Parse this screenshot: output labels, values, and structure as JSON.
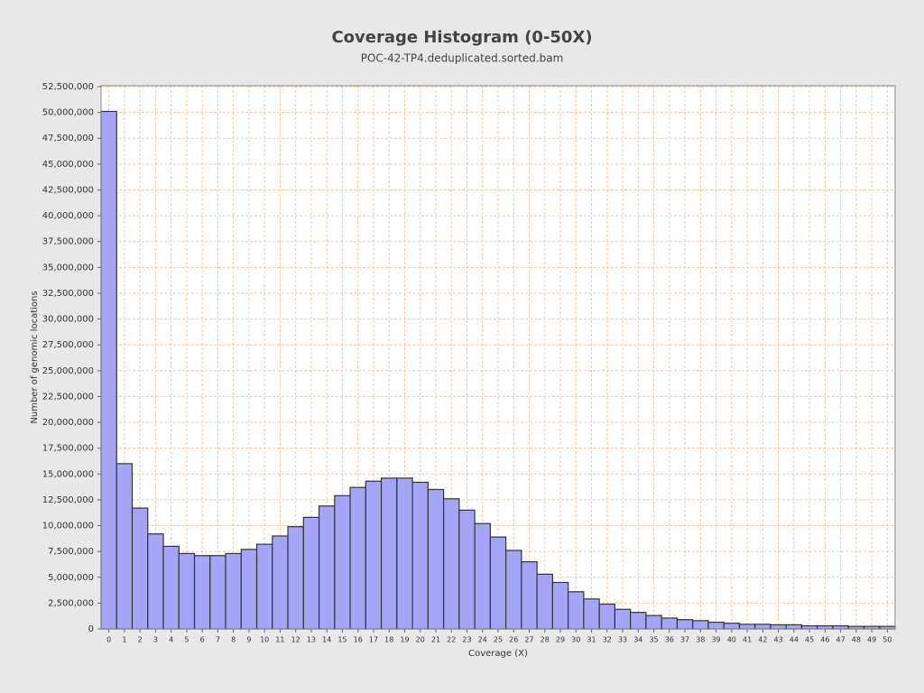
{
  "chart_data": {
    "type": "bar",
    "title": "Coverage Histogram (0-50X)",
    "subtitle": "POC-42-TP4.deduplicated.sorted.bam",
    "x_label": "Coverage (X)",
    "y_label": "Number of genomic locations",
    "categories": [
      "0",
      "1",
      "2",
      "3",
      "4",
      "5",
      "6",
      "7",
      "8",
      "9",
      "10",
      "11",
      "12",
      "13",
      "14",
      "15",
      "16",
      "17",
      "18",
      "19",
      "20",
      "21",
      "22",
      "23",
      "24",
      "25",
      "26",
      "27",
      "28",
      "29",
      "30",
      "31",
      "32",
      "33",
      "34",
      "35",
      "36",
      "37",
      "38",
      "39",
      "40",
      "41",
      "42",
      "43",
      "44",
      "45",
      "46",
      "47",
      "48",
      "49",
      "50"
    ],
    "values": [
      50100000,
      16000000,
      11700000,
      9200000,
      8000000,
      7300000,
      7100000,
      7100000,
      7300000,
      7700000,
      8200000,
      9000000,
      9900000,
      10800000,
      11900000,
      12900000,
      13700000,
      14300000,
      14600000,
      14600000,
      14200000,
      13500000,
      12600000,
      11500000,
      10200000,
      8900000,
      7600000,
      6500000,
      5300000,
      4500000,
      3600000,
      2900000,
      2400000,
      1900000,
      1600000,
      1300000,
      1050000,
      900000,
      800000,
      650000,
      550000,
      450000,
      450000,
      400000,
      400000,
      300000,
      300000,
      300000,
      250000,
      250000,
      250000
    ],
    "color": "#a5a5f7",
    "ylim": [
      0,
      52500000
    ],
    "yticks": [
      {
        "value": 0,
        "label": "0"
      },
      {
        "value": 2500000,
        "label": "2,500,000"
      },
      {
        "value": 5000000,
        "label": "5,000,000"
      },
      {
        "value": 7500000,
        "label": "7,500,000"
      },
      {
        "value": 10000000,
        "label": "10,000,000"
      },
      {
        "value": 12500000,
        "label": "12,500,000"
      },
      {
        "value": 15000000,
        "label": "15,000,000"
      },
      {
        "value": 17500000,
        "label": "17,500,000"
      },
      {
        "value": 20000000,
        "label": "20,000,000"
      },
      {
        "value": 22500000,
        "label": "22,500,000"
      },
      {
        "value": 25000000,
        "label": "25,000,000"
      },
      {
        "value": 27500000,
        "label": "27,500,000"
      },
      {
        "value": 30000000,
        "label": "30,000,000"
      },
      {
        "value": 32500000,
        "label": "32,500,000"
      },
      {
        "value": 35000000,
        "label": "35,000,000"
      },
      {
        "value": 37500000,
        "label": "37,500,000"
      },
      {
        "value": 40000000,
        "label": "40,000,000"
      },
      {
        "value": 42500000,
        "label": "42,500,000"
      },
      {
        "value": 45000000,
        "label": "45,000,000"
      },
      {
        "value": 47500000,
        "label": "47,500,000"
      },
      {
        "value": 50000000,
        "label": "50,000,000"
      },
      {
        "value": 52500000,
        "label": "52,500,000"
      }
    ],
    "grid": true
  }
}
